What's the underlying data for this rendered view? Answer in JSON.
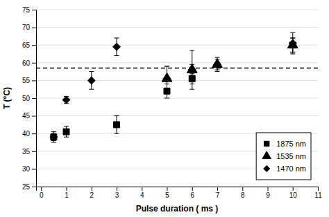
{
  "chart_data": {
    "type": "scatter",
    "x_label": "Pulse duration ( ms )",
    "y_label": "T (°C)",
    "xlim": [
      -0.2,
      11
    ],
    "ylim": [
      25,
      75
    ],
    "xticks": [
      0,
      1,
      2,
      3,
      4,
      5,
      6,
      7,
      8,
      9,
      10,
      11
    ],
    "yticks": [
      25,
      30,
      35,
      40,
      45,
      50,
      55,
      60,
      65,
      70,
      75
    ],
    "grid": true,
    "legend": "lower right",
    "reference_line": {
      "y": 58.5,
      "color": "#000000",
      "line_style": "dashed"
    },
    "series": [
      {
        "name": "1875 nm",
        "marker": "square",
        "color": "#000000",
        "x": [
          0.5,
          1,
          3,
          5,
          6,
          10
        ],
        "values": [
          39.0,
          40.5,
          42.5,
          52.0,
          55.5,
          65.0
        ],
        "yerr": [
          1.5,
          1.5,
          2.5,
          2.0,
          1.5,
          2.0
        ]
      },
      {
        "name": "1535 nm",
        "marker": "triangle",
        "color": "#000000",
        "x": [
          5,
          6,
          7,
          10
        ],
        "values": [
          55.5,
          58.0,
          59.5,
          65.0
        ],
        "yerr": [
          3.5,
          5.5,
          2.0,
          2.0
        ]
      },
      {
        "name": "1470 nm",
        "marker": "diamond",
        "color": "#000000",
        "x": [
          0.5,
          1,
          2,
          3,
          5,
          6,
          7,
          10
        ],
        "values": [
          39.0,
          49.5,
          55.0,
          64.5,
          55.5,
          58.0,
          59.5,
          65.5
        ],
        "yerr": [
          1.0,
          1.0,
          2.5,
          2.5,
          3.5,
          1.5,
          1.5,
          3.0
        ]
      }
    ]
  }
}
